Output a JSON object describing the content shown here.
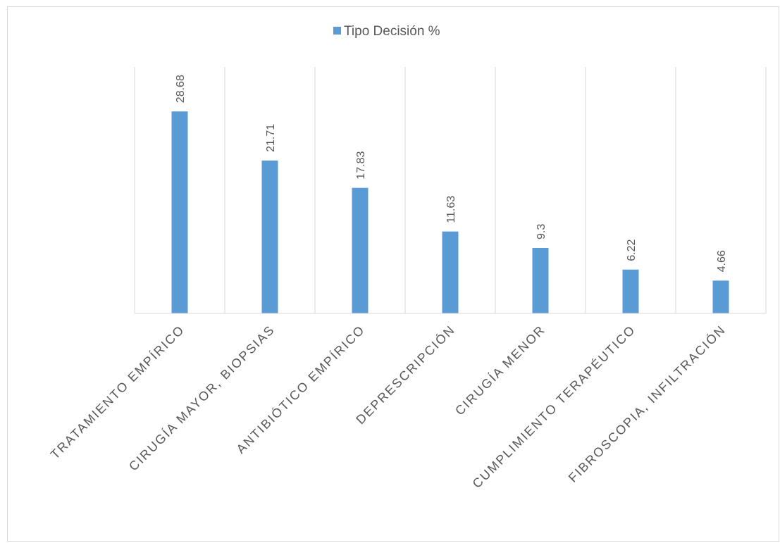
{
  "chart_data": {
    "type": "bar",
    "categories": [
      "TRATAMIENTO EMPÍRICO",
      "CIRUGÍA MAYOR, BIOPSIAS",
      "ANTIBIÓTICO EMPÍRICO",
      "DEPRESCRIPCIÓN",
      "CIRUGÍA MENOR",
      "CUMPLIMIENTO TERAPÉUTICO",
      "FIBROSCOPIA, INFILTRACIÓN"
    ],
    "series": [
      {
        "name": "Tipo Decisión %",
        "values": [
          28.68,
          21.71,
          17.83,
          11.63,
          9.3,
          6.22,
          4.66
        ]
      }
    ],
    "data_labels": [
      "28.68",
      "21.71",
      "17.83",
      "11.63",
      "9.3",
      "6.22",
      "4.66"
    ],
    "ylim": [
      0,
      35
    ],
    "grid": "vertical",
    "legend_position": "top",
    "colors": {
      "bar": "#5b9bd5",
      "grid": "#d9d9d9",
      "text": "#595959",
      "axis": "#d9d9d9"
    }
  }
}
